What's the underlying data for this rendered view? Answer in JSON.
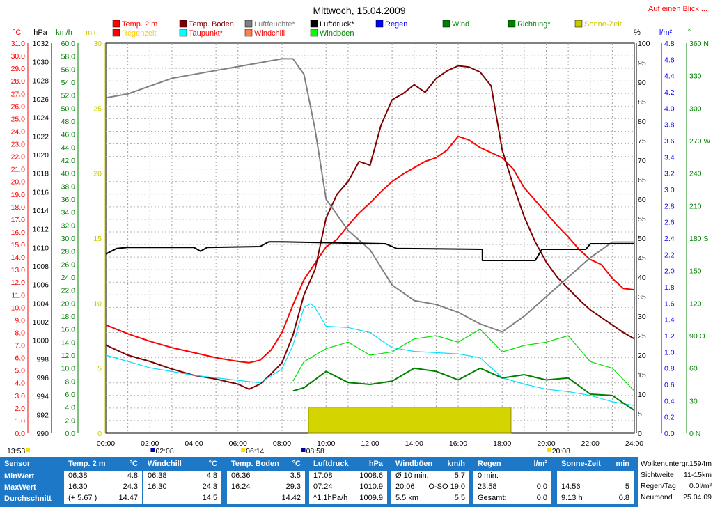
{
  "header": {
    "title": "Mittwoch, 15.04.2009",
    "link": "Auf einen Blick ..."
  },
  "legend": [
    {
      "label": "Temp. 2 m",
      "color": "#ff0000",
      "text_color": "#ff0000"
    },
    {
      "label": "Temp. Boden",
      "color": "#800000",
      "text_color": "#800000"
    },
    {
      "label": "Luftfeuchte*",
      "color": "#808080",
      "text_color": "#808080"
    },
    {
      "label": "Luftdruck*",
      "color": "#000000",
      "text_color": "#000000"
    },
    {
      "label": "Regen",
      "color": "#0000ff",
      "text_color": "#0000ff"
    },
    {
      "label": "Wind",
      "color": "#008000",
      "text_color": "#008000"
    },
    {
      "label": "Richtung*",
      "color": "#008000",
      "text_color": "#008000"
    },
    {
      "label": "Sonne-Zeit",
      "color": "#c8c800",
      "text_color": "#c8c800"
    },
    {
      "label": "Regenzeit",
      "color": "#ff0000",
      "text_color": "#ffcc00"
    },
    {
      "label": "Taupunkt*",
      "color": "#00ffff",
      "text_color": "#ff0000"
    },
    {
      "label": "Windchill",
      "color": "#ff8040",
      "text_color": "#ff0000"
    },
    {
      "label": "Windböen",
      "color": "#00ff00",
      "text_color": "#008000"
    }
  ],
  "axis_units": {
    "temp": "°C",
    "press": "hPa",
    "wind": "km/h",
    "sun": "min",
    "hum": "%",
    "rain": "l/m²",
    "dir": "°"
  },
  "axis_ticks": {
    "temp": [
      "31.0",
      "30.0",
      "29.0",
      "28.0",
      "27.0",
      "26.0",
      "25.0",
      "24.0",
      "23.0",
      "22.0",
      "21.0",
      "20.0",
      "19.0",
      "18.0",
      "17.0",
      "16.0",
      "15.0",
      "14.0",
      "13.0",
      "12.0",
      "11.0",
      "10.0",
      "9.0",
      "8.0",
      "7.0",
      "6.0",
      "5.0",
      "4.0",
      "3.0",
      "2.0",
      "1.0",
      "0.0"
    ],
    "press": [
      "1032",
      "1030",
      "1028",
      "1026",
      "1024",
      "1022",
      "1020",
      "1018",
      "1016",
      "1014",
      "1012",
      "1010",
      "1008",
      "1006",
      "1004",
      "1002",
      "1000",
      "998",
      "996",
      "994",
      "992",
      "990"
    ],
    "wind": [
      "60.0",
      "58.0",
      "56.0",
      "54.0",
      "52.0",
      "50.0",
      "48.0",
      "46.0",
      "44.0",
      "42.0",
      "40.0",
      "38.0",
      "36.0",
      "34.0",
      "32.0",
      "30.0",
      "28.0",
      "26.0",
      "24.0",
      "22.0",
      "20.0",
      "18.0",
      "16.0",
      "14.0",
      "12.0",
      "10.0",
      "8.0",
      "6.0",
      "4.0",
      "2.0",
      "0.0"
    ],
    "sun": [
      "30",
      "25",
      "20",
      "15",
      "10",
      "5",
      "0"
    ],
    "hum": [
      "100",
      "95",
      "90",
      "85",
      "80",
      "75",
      "70",
      "65",
      "60",
      "55",
      "50",
      "45",
      "40",
      "35",
      "30",
      "25",
      "20",
      "15",
      "10",
      "5",
      "0"
    ],
    "rain": [
      "4.8",
      "4.6",
      "4.4",
      "4.2",
      "4.0",
      "3.8",
      "3.6",
      "3.4",
      "3.2",
      "3.0",
      "2.8",
      "2.6",
      "2.4",
      "2.2",
      "2.0",
      "1.8",
      "1.6",
      "1.4",
      "1.2",
      "1.0",
      "0.8",
      "0.6",
      "0.4",
      "0.2",
      "0.0"
    ],
    "dir": [
      "360 N",
      "330",
      "300",
      "270 W",
      "240",
      "210",
      "180 S",
      "150",
      "120",
      "90 O",
      "60",
      "30",
      "0 N"
    ],
    "time": [
      "00:00",
      "02:00",
      "04:00",
      "06:00",
      "08:00",
      "10:00",
      "12:00",
      "14:00",
      "16:00",
      "18:00",
      "20:00",
      "22:00",
      "24:00"
    ]
  },
  "sun_markers": {
    "sunrise": "06:14",
    "sunset": "20:08",
    "moonset": "02:08",
    "moonrise": "08:58",
    "now": "13:53"
  },
  "chart_data": {
    "type": "line",
    "x_label": "Uhrzeit",
    "x_unit": "h",
    "x_range": [
      0,
      24
    ],
    "series": [
      {
        "name": "Temp. 2 m",
        "axis": "temp °C",
        "ylim": [
          0,
          31
        ],
        "points": [
          [
            0,
            8.6
          ],
          [
            1,
            7.9
          ],
          [
            2,
            7.3
          ],
          [
            3,
            6.8
          ],
          [
            4,
            6.4
          ],
          [
            5,
            6.0
          ],
          [
            6,
            5.7
          ],
          [
            6.5,
            5.6
          ],
          [
            7,
            5.8
          ],
          [
            7.5,
            6.6
          ],
          [
            8,
            8.0
          ],
          [
            8.5,
            10.2
          ],
          [
            9,
            12.2
          ],
          [
            9.5,
            13.5
          ],
          [
            10,
            14.8
          ],
          [
            10.5,
            15.4
          ],
          [
            11,
            16.5
          ],
          [
            11.5,
            17.5
          ],
          [
            12,
            18.3
          ],
          [
            12.5,
            19.2
          ],
          [
            13,
            20.0
          ],
          [
            13.5,
            20.6
          ],
          [
            14,
            21.1
          ],
          [
            14.5,
            21.6
          ],
          [
            15,
            21.9
          ],
          [
            15.5,
            22.5
          ],
          [
            16,
            23.6
          ],
          [
            16.5,
            23.3
          ],
          [
            17,
            22.7
          ],
          [
            17.5,
            22.3
          ],
          [
            18,
            21.9
          ],
          [
            18.5,
            21.0
          ],
          [
            19,
            19.5
          ],
          [
            19.5,
            18.5
          ],
          [
            20,
            17.5
          ],
          [
            20.5,
            16.5
          ],
          [
            21,
            15.6
          ],
          [
            21.5,
            14.6
          ],
          [
            22,
            13.8
          ],
          [
            22.5,
            13.4
          ],
          [
            23,
            12.3
          ],
          [
            23.5,
            11.5
          ],
          [
            24,
            11.4
          ]
        ]
      },
      {
        "name": "Temp. Boden",
        "axis": "temp °C",
        "ylim": [
          0,
          31
        ],
        "points": [
          [
            0,
            7.0
          ],
          [
            1,
            6.2
          ],
          [
            2,
            5.7
          ],
          [
            3,
            5.1
          ],
          [
            4,
            4.6
          ],
          [
            5,
            4.3
          ],
          [
            6,
            3.9
          ],
          [
            6.5,
            3.5
          ],
          [
            7,
            3.9
          ],
          [
            7.5,
            4.7
          ],
          [
            8,
            5.6
          ],
          [
            8.5,
            7.8
          ],
          [
            9,
            11.0
          ],
          [
            9.5,
            13.0
          ],
          [
            10,
            17.1
          ],
          [
            10.5,
            19.0
          ],
          [
            11,
            20.0
          ],
          [
            11.5,
            21.6
          ],
          [
            12,
            21.3
          ],
          [
            12.5,
            24.5
          ],
          [
            13,
            26.5
          ],
          [
            13.5,
            27.0
          ],
          [
            14,
            27.7
          ],
          [
            14.5,
            27.1
          ],
          [
            15,
            28.2
          ],
          [
            15.5,
            28.8
          ],
          [
            16,
            29.2
          ],
          [
            16.5,
            29.1
          ],
          [
            17,
            28.7
          ],
          [
            17.5,
            27.6
          ],
          [
            18,
            22.5
          ],
          [
            18.5,
            19.7
          ],
          [
            19,
            17.2
          ],
          [
            19.5,
            15.2
          ],
          [
            20,
            13.6
          ],
          [
            20.5,
            12.4
          ],
          [
            21,
            11.5
          ],
          [
            21.5,
            10.6
          ],
          [
            22,
            9.8
          ],
          [
            22.5,
            9.2
          ],
          [
            23,
            8.6
          ],
          [
            23.5,
            8.0
          ],
          [
            24,
            7.5
          ]
        ]
      },
      {
        "name": "Luftfeuchte*",
        "axis": "hum %",
        "ylim": [
          0,
          100
        ],
        "points": [
          [
            0,
            86
          ],
          [
            1,
            87
          ],
          [
            2,
            89
          ],
          [
            3,
            91
          ],
          [
            4,
            92
          ],
          [
            5,
            93
          ],
          [
            6,
            94
          ],
          [
            7,
            95
          ],
          [
            8,
            96
          ],
          [
            8.5,
            96
          ],
          [
            9,
            92
          ],
          [
            9.5,
            78
          ],
          [
            10,
            60
          ],
          [
            11,
            52
          ],
          [
            12,
            47
          ],
          [
            13,
            38
          ],
          [
            14,
            34
          ],
          [
            15,
            33
          ],
          [
            16,
            31
          ],
          [
            17,
            28
          ],
          [
            18,
            26
          ],
          [
            19,
            30
          ],
          [
            20,
            35
          ],
          [
            21,
            40
          ],
          [
            22,
            45
          ],
          [
            23,
            49
          ],
          [
            24,
            49
          ]
        ]
      },
      {
        "name": "Luftdruck*",
        "axis": "press hPa",
        "ylim": [
          990,
          1032
        ],
        "points": [
          [
            0,
            1009.3
          ],
          [
            0.5,
            1009.9
          ],
          [
            1,
            1010.0
          ],
          [
            4,
            1010.0
          ],
          [
            4.3,
            1009.6
          ],
          [
            4.6,
            1010.0
          ],
          [
            7,
            1010.1
          ],
          [
            7.4,
            1010.6
          ],
          [
            8,
            1010.6
          ],
          [
            12.7,
            1010.4
          ],
          [
            13.2,
            1009.9
          ],
          [
            17.1,
            1009.8
          ],
          [
            17.1,
            1008.6
          ],
          [
            19.5,
            1008.6
          ],
          [
            19.8,
            1009.8
          ],
          [
            21.8,
            1009.8
          ],
          [
            22,
            1010.4
          ],
          [
            24,
            1010.4
          ]
        ]
      },
      {
        "name": "Taupunkt*",
        "axis": "temp °C",
        "ylim": [
          0,
          31
        ],
        "points": [
          [
            0,
            6.2
          ],
          [
            2,
            5.2
          ],
          [
            4,
            4.6
          ],
          [
            6,
            4.2
          ],
          [
            7,
            4.0
          ],
          [
            8,
            5.1
          ],
          [
            8.5,
            7.0
          ],
          [
            9,
            10.0
          ],
          [
            9.3,
            10.3
          ],
          [
            9.5,
            10.0
          ],
          [
            10,
            8.5
          ],
          [
            11,
            8.4
          ],
          [
            12,
            8.0
          ],
          [
            13,
            6.8
          ],
          [
            14,
            6.5
          ],
          [
            15,
            6.4
          ],
          [
            16,
            6.3
          ],
          [
            17,
            6.0
          ],
          [
            18,
            4.4
          ],
          [
            19,
            3.9
          ],
          [
            20,
            3.5
          ],
          [
            21,
            3.3
          ],
          [
            22,
            3.0
          ],
          [
            23,
            2.5
          ],
          [
            24,
            2.2
          ]
        ]
      },
      {
        "name": "Wind",
        "axis": "wind km/h",
        "ylim": [
          0,
          60
        ],
        "points": [
          [
            8.5,
            6.5
          ],
          [
            9,
            7.0
          ],
          [
            10,
            9.5
          ],
          [
            11,
            7.8
          ],
          [
            12,
            7.5
          ],
          [
            13,
            8.0
          ],
          [
            14,
            10.0
          ],
          [
            15,
            9.5
          ],
          [
            16,
            8.2
          ],
          [
            17,
            10.0
          ],
          [
            18,
            8.5
          ],
          [
            19,
            9.0
          ],
          [
            20,
            8.2
          ],
          [
            21,
            8.5
          ],
          [
            22,
            6.0
          ],
          [
            23,
            5.8
          ],
          [
            24,
            3.5
          ]
        ]
      },
      {
        "name": "Windböen",
        "axis": "wind km/h",
        "ylim": [
          0,
          60
        ],
        "points": [
          [
            8.5,
            8.0
          ],
          [
            9,
            11.0
          ],
          [
            10,
            13.0
          ],
          [
            11,
            14.0
          ],
          [
            12,
            12.0
          ],
          [
            13,
            12.5
          ],
          [
            14,
            14.5
          ],
          [
            15,
            15.0
          ],
          [
            16,
            14.0
          ],
          [
            17,
            16.0
          ],
          [
            18,
            12.5
          ],
          [
            19,
            13.5
          ],
          [
            20,
            14.0
          ],
          [
            21,
            15.0
          ],
          [
            22,
            11.0
          ],
          [
            23,
            10.0
          ],
          [
            24,
            6.5
          ]
        ]
      },
      {
        "name": "Sonne-Zeit",
        "axis": "sun min",
        "ylim": [
          0,
          30
        ],
        "points": [
          [
            9.2,
            2
          ],
          [
            18.4,
            2
          ]
        ]
      }
    ]
  },
  "footer": {
    "sensor": {
      "head": "Sensor",
      "rows": [
        "MinWert",
        "MaxWert",
        "Durchschnitt"
      ]
    },
    "temp": {
      "head": "Temp. 2 m",
      "unit": "°C",
      "rows": [
        [
          "06:38",
          "4.8"
        ],
        [
          "16:30",
          "24.3"
        ],
        [
          "(+ 5.67 )",
          "14.47"
        ]
      ]
    },
    "windchill": {
      "head": "Windchill",
      "unit": "°C",
      "rows": [
        [
          "06:38",
          "4.8"
        ],
        [
          "16:30",
          "24.3"
        ],
        [
          "",
          "14.5"
        ]
      ]
    },
    "boden": {
      "head": "Temp. Boden",
      "unit": "°C",
      "rows": [
        [
          "06:36",
          "3.5"
        ],
        [
          "16:24",
          "29.3"
        ],
        [
          "",
          "14.42"
        ]
      ]
    },
    "druck": {
      "head": "Luftdruck",
      "unit": "hPa",
      "rows": [
        [
          "17:08",
          "1008.6"
        ],
        [
          "07:24",
          "1010.9"
        ],
        [
          "^1.1hPa/h",
          "1009.9"
        ]
      ]
    },
    "boeen": {
      "head": "Windböen",
      "unit": "km/h",
      "rows": [
        [
          "Ø 10 min.",
          "5.7"
        ],
        [
          "20:06",
          "O-SO 19.0"
        ],
        [
          "5.5 km",
          "5.5"
        ]
      ]
    },
    "regen": {
      "head": "Regen",
      "unit": "l/m²",
      "rows": [
        [
          "0 min.",
          ""
        ],
        [
          "23:58",
          "0.0"
        ],
        [
          "Gesamt:",
          "0.0"
        ]
      ]
    },
    "sonne": {
      "head": "Sonne-Zeit",
      "unit": "min",
      "rows": [
        [
          "",
          ""
        ],
        [
          "14:56",
          "5"
        ],
        [
          "9.13 h",
          "0.8"
        ]
      ]
    },
    "extra": {
      "rows": [
        [
          "Wolkenuntergr.",
          "1594m"
        ],
        [
          "Sichtweite",
          "11-15km"
        ],
        [
          "Regen/Tag",
          "0.0l/m²"
        ],
        [
          "Neumond",
          "25.04.09"
        ]
      ]
    }
  }
}
